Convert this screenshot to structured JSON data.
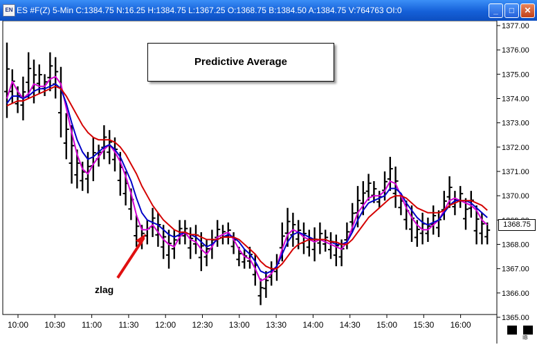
{
  "window": {
    "title": "ES #F(Z) 5-Min C:1384.75 N:16.25 H:1384.75 L:1367.25 O:1368.75 B:1384.50 A:1384.75 V:764763 OI:0",
    "app_icon": "EN",
    "buttons": {
      "minimize": "_",
      "maximize": "□",
      "close": "✕"
    }
  },
  "annotations": {
    "legend": "Predictive Average",
    "note": "zlag",
    "arrow_color": "#e01010"
  },
  "last_price": "1368.75",
  "corner_label": "IB",
  "colors": {
    "bars": "#000000",
    "zlag": "#d400d4",
    "blue_avg": "#0000c8",
    "red_avg": "#d40000",
    "axis": "#000000"
  },
  "chart_data": {
    "type": "ohlc",
    "ylim": [
      1365,
      1377
    ],
    "y_ticks": [
      "1365.00",
      "1366.00",
      "1367.00",
      "1368.00",
      "1369.00",
      "1370.00",
      "1371.00",
      "1372.00",
      "1373.00",
      "1374.00",
      "1375.00",
      "1376.00",
      "1377.00"
    ],
    "x_ticks": [
      "10:00",
      "10:30",
      "11:00",
      "11:30",
      "12:00",
      "12:30",
      "13:00",
      "13:30",
      "14:00",
      "14:30",
      "15:00",
      "15:30",
      "16:00"
    ],
    "bars": [
      [
        1376.3,
        1373.2
      ],
      [
        1375.2,
        1373.8
      ],
      [
        1374.5,
        1373.4
      ],
      [
        1374.9,
        1373.1
      ],
      [
        1375.9,
        1374.0
      ],
      [
        1375.6,
        1373.8
      ],
      [
        1375.4,
        1374.2
      ],
      [
        1375.0,
        1374.1
      ],
      [
        1375.9,
        1374.3
      ],
      [
        1375.7,
        1374.0
      ],
      [
        1375.3,
        1372.4
      ],
      [
        1373.4,
        1371.5
      ],
      [
        1372.9,
        1370.5
      ],
      [
        1371.9,
        1370.3
      ],
      [
        1371.4,
        1370.2
      ],
      [
        1371.8,
        1370.1
      ],
      [
        1372.4,
        1370.6
      ],
      [
        1372.1,
        1371.2
      ],
      [
        1372.9,
        1371.5
      ],
      [
        1372.7,
        1371.3
      ],
      [
        1372.4,
        1371.0
      ],
      [
        1371.8,
        1370.0
      ],
      [
        1371.0,
        1369.6
      ],
      [
        1370.3,
        1369.0
      ],
      [
        1369.2,
        1367.9
      ],
      [
        1368.8,
        1367.8
      ],
      [
        1369.0,
        1368.0
      ],
      [
        1369.5,
        1368.3
      ],
      [
        1369.3,
        1367.9
      ],
      [
        1368.8,
        1367.4
      ],
      [
        1368.6,
        1367.0
      ],
      [
        1368.6,
        1367.4
      ],
      [
        1369.0,
        1368.0
      ],
      [
        1369.0,
        1368.0
      ],
      [
        1368.7,
        1367.4
      ],
      [
        1368.8,
        1367.6
      ],
      [
        1368.5,
        1366.9
      ],
      [
        1368.2,
        1367.1
      ],
      [
        1368.6,
        1367.4
      ],
      [
        1369.0,
        1367.9
      ],
      [
        1368.8,
        1368.0
      ],
      [
        1368.9,
        1368.0
      ],
      [
        1368.5,
        1367.6
      ],
      [
        1367.9,
        1367.1
      ],
      [
        1367.8,
        1367.0
      ],
      [
        1367.9,
        1367.0
      ],
      [
        1367.6,
        1366.3
      ],
      [
        1366.6,
        1365.5
      ],
      [
        1366.9,
        1365.8
      ],
      [
        1367.3,
        1366.3
      ],
      [
        1367.6,
        1366.5
      ],
      [
        1368.9,
        1367.3
      ],
      [
        1369.5,
        1367.9
      ],
      [
        1369.3,
        1367.9
      ],
      [
        1369.0,
        1367.8
      ],
      [
        1368.9,
        1367.6
      ],
      [
        1368.6,
        1367.5
      ],
      [
        1368.7,
        1367.3
      ],
      [
        1368.9,
        1367.6
      ],
      [
        1368.6,
        1367.7
      ],
      [
        1368.5,
        1367.4
      ],
      [
        1368.4,
        1367.1
      ],
      [
        1368.2,
        1367.1
      ],
      [
        1368.9,
        1367.8
      ],
      [
        1369.7,
        1368.5
      ],
      [
        1370.4,
        1368.7
      ],
      [
        1370.6,
        1369.2
      ],
      [
        1370.9,
        1369.8
      ],
      [
        1370.6,
        1369.7
      ],
      [
        1370.2,
        1369.5
      ],
      [
        1371.0,
        1369.8
      ],
      [
        1371.6,
        1370.2
      ],
      [
        1371.2,
        1369.5
      ],
      [
        1370.1,
        1369.2
      ],
      [
        1369.8,
        1368.6
      ],
      [
        1369.6,
        1368.1
      ],
      [
        1369.0,
        1367.9
      ],
      [
        1369.3,
        1368.0
      ],
      [
        1369.1,
        1368.1
      ],
      [
        1369.6,
        1368.4
      ],
      [
        1369.4,
        1368.3
      ],
      [
        1370.2,
        1369.0
      ],
      [
        1370.8,
        1369.5
      ],
      [
        1370.2,
        1369.2
      ],
      [
        1370.4,
        1369.5
      ],
      [
        1369.9,
        1368.6
      ],
      [
        1370.2,
        1369.1
      ],
      [
        1369.6,
        1368.0
      ],
      [
        1369.3,
        1368.0
      ],
      [
        1368.9,
        1368.0
      ]
    ],
    "series": [
      {
        "values": [
          1374.0,
          1374.7,
          1374.3,
          1374.0,
          1374.2,
          1374.6,
          1374.5,
          1374.5,
          1374.8,
          1374.9,
          1374.6,
          1373.6,
          1372.6,
          1371.7,
          1371.1,
          1370.9,
          1371.3,
          1371.6,
          1371.9,
          1372.1,
          1371.8,
          1371.4,
          1370.8,
          1370.1,
          1369.2,
          1368.6,
          1368.6,
          1368.8,
          1368.5,
          1368.2,
          1368.0,
          1367.9,
          1368.3,
          1368.5,
          1368.2,
          1368.1,
          1367.8,
          1367.6,
          1367.9,
          1368.3,
          1368.4,
          1368.5,
          1368.2,
          1367.8,
          1367.5,
          1367.4,
          1367.0,
          1366.5,
          1366.6,
          1366.8,
          1367.1,
          1367.8,
          1368.4,
          1368.6,
          1368.5,
          1368.3,
          1368.2,
          1368.1,
          1368.2,
          1368.1,
          1368.0,
          1367.9,
          1367.8,
          1368.1,
          1368.7,
          1369.3,
          1369.6,
          1369.9,
          1370.0,
          1370.0,
          1370.2,
          1370.6,
          1370.5,
          1370.0,
          1369.5,
          1369.1,
          1368.8,
          1368.6,
          1368.6,
          1368.8,
          1369.0,
          1369.4,
          1369.8,
          1369.9,
          1369.8,
          1369.7,
          1369.6,
          1369.4,
          1369.0,
          1368.8
        ]
      },
      {
        "values": [
          1373.8,
          1374.1,
          1374.1,
          1374.0,
          1374.1,
          1374.3,
          1374.4,
          1374.4,
          1374.5,
          1374.6,
          1374.4,
          1373.8,
          1373.0,
          1372.3,
          1371.8,
          1371.5,
          1371.6,
          1371.8,
          1372.0,
          1372.1,
          1371.9,
          1371.6,
          1371.1,
          1370.6,
          1369.9,
          1369.3,
          1369.0,
          1368.9,
          1368.8,
          1368.6,
          1368.4,
          1368.3,
          1368.4,
          1368.5,
          1368.4,
          1368.3,
          1368.1,
          1367.9,
          1368.0,
          1368.2,
          1368.3,
          1368.4,
          1368.3,
          1368.1,
          1367.8,
          1367.6,
          1367.3,
          1366.9,
          1366.8,
          1366.9,
          1367.1,
          1367.6,
          1368.1,
          1368.4,
          1368.5,
          1368.4,
          1368.3,
          1368.2,
          1368.2,
          1368.2,
          1368.1,
          1368.0,
          1368.0,
          1368.1,
          1368.5,
          1369.0,
          1369.4,
          1369.7,
          1369.8,
          1369.9,
          1370.0,
          1370.3,
          1370.3,
          1370.1,
          1369.7,
          1369.4,
          1369.1,
          1368.9,
          1368.8,
          1368.9,
          1369.0,
          1369.3,
          1369.6,
          1369.8,
          1369.8,
          1369.8,
          1369.7,
          1369.5,
          1369.3,
          1369.1
        ]
      },
      {
        "values": [
          1373.7,
          1373.8,
          1373.9,
          1373.9,
          1374.0,
          1374.1,
          1374.2,
          1374.3,
          1374.4,
          1374.5,
          1374.4,
          1374.1,
          1373.7,
          1373.3,
          1372.9,
          1372.6,
          1372.4,
          1372.3,
          1372.3,
          1372.3,
          1372.2,
          1372.0,
          1371.7,
          1371.3,
          1370.9,
          1370.4,
          1370.0,
          1369.6,
          1369.3,
          1369.0,
          1368.8,
          1368.6,
          1368.5,
          1368.5,
          1368.4,
          1368.4,
          1368.3,
          1368.2,
          1368.2,
          1368.2,
          1368.3,
          1368.3,
          1368.3,
          1368.2,
          1368.0,
          1367.8,
          1367.6,
          1367.3,
          1367.1,
          1367.0,
          1367.0,
          1367.2,
          1367.5,
          1367.8,
          1368.0,
          1368.1,
          1368.2,
          1368.2,
          1368.2,
          1368.2,
          1368.1,
          1368.1,
          1368.0,
          1368.0,
          1368.2,
          1368.5,
          1368.8,
          1369.1,
          1369.3,
          1369.5,
          1369.7,
          1369.9,
          1370.0,
          1370.0,
          1369.9,
          1369.7,
          1369.5,
          1369.4,
          1369.3,
          1369.3,
          1369.3,
          1369.4,
          1369.6,
          1369.7,
          1369.8,
          1369.8,
          1369.8,
          1369.7,
          1369.6,
          1369.4
        ]
      }
    ]
  }
}
